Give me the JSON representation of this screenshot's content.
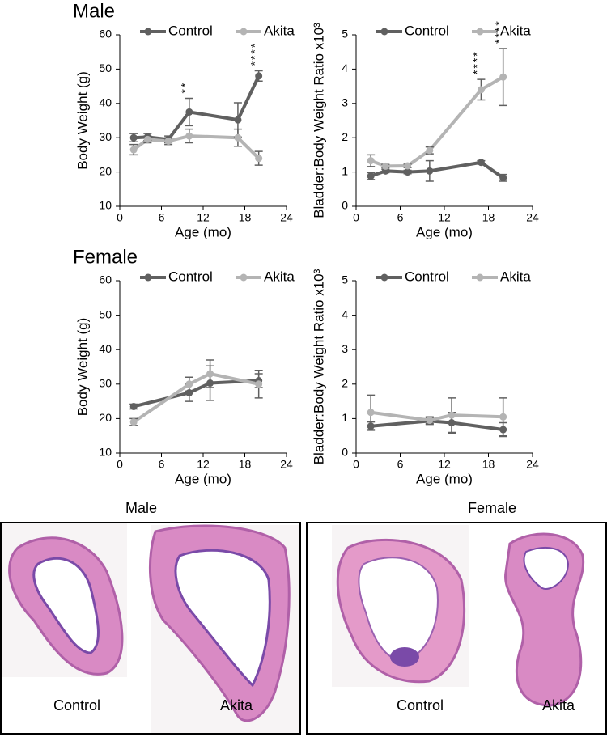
{
  "chart_data": [
    {
      "type": "line",
      "title": "Male",
      "ylabel": "Body Weight (g)",
      "xlabel": "Age (mo)",
      "x": [
        2,
        4,
        7,
        10,
        17,
        20
      ],
      "xlim": [
        0,
        24
      ],
      "xticks": [
        0,
        6,
        12,
        18,
        24
      ],
      "ylim": [
        10,
        60
      ],
      "yticks": [
        10,
        20,
        30,
        40,
        50,
        60
      ],
      "series": [
        {
          "name": "Control",
          "color": "#606060",
          "values": [
            30,
            30.2,
            29.5,
            37.5,
            35.2,
            48
          ],
          "errors": [
            1.2,
            1,
            1,
            4,
            5,
            1.5
          ],
          "significance": [
            null,
            null,
            null,
            "**",
            null,
            "****"
          ]
        },
        {
          "name": "Akita",
          "color": "#b4b4b4",
          "values": [
            26.5,
            29.5,
            29,
            30.5,
            30,
            24
          ],
          "errors": [
            1.5,
            1,
            1,
            2,
            2.5,
            2
          ]
        }
      ]
    },
    {
      "type": "line",
      "ylabel": "Bladder:Body Weight Ratio x10³",
      "xlabel": "Age (mo)",
      "x": [
        2,
        4,
        7,
        10,
        17,
        20
      ],
      "xlim": [
        0,
        24
      ],
      "xticks": [
        0,
        6,
        12,
        18,
        24
      ],
      "ylim": [
        0,
        5
      ],
      "yticks": [
        0,
        1,
        2,
        3,
        4,
        5
      ],
      "series": [
        {
          "name": "Control",
          "color": "#606060",
          "values": [
            0.88,
            1.03,
            1.0,
            1.03,
            1.28,
            0.83
          ],
          "errors": [
            0.1,
            0.05,
            0.05,
            0.3,
            0.05,
            0.1
          ]
        },
        {
          "name": "Akita",
          "color": "#b4b4b4",
          "values": [
            1.33,
            1.17,
            1.18,
            1.63,
            3.4,
            3.77
          ],
          "errors": [
            0.17,
            0.05,
            0.05,
            0.1,
            0.3,
            0.83
          ],
          "significance": [
            null,
            null,
            null,
            null,
            "****",
            "****"
          ]
        }
      ]
    },
    {
      "type": "line",
      "title": "Female",
      "ylabel": "Body Weight (g)",
      "xlabel": "Age (mo)",
      "x": [
        2,
        10,
        13,
        20
      ],
      "xlim": [
        0,
        24
      ],
      "xticks": [
        0,
        6,
        12,
        18,
        24
      ],
      "ylim": [
        10,
        60
      ],
      "yticks": [
        10,
        20,
        30,
        40,
        50,
        60
      ],
      "series": [
        {
          "name": "Control",
          "color": "#606060",
          "values": [
            23.5,
            27.5,
            30.3,
            31
          ],
          "errors": [
            0.7,
            2.5,
            5,
            2
          ]
        },
        {
          "name": "Akita",
          "color": "#b4b4b4",
          "values": [
            19,
            30,
            33,
            30
          ],
          "errors": [
            1,
            2,
            4,
            4
          ]
        }
      ]
    },
    {
      "type": "line",
      "ylabel": "Bladder:Body Weight Ratio x10³",
      "xlabel": "Age (mo)",
      "x": [
        2,
        10,
        13,
        20
      ],
      "xlim": [
        0,
        24
      ],
      "xticks": [
        0,
        6,
        12,
        18,
        24
      ],
      "ylim": [
        0,
        5
      ],
      "yticks": [
        0,
        1,
        2,
        3,
        4,
        5
      ],
      "series": [
        {
          "name": "Control",
          "color": "#606060",
          "values": [
            0.78,
            0.93,
            0.88,
            0.68
          ],
          "errors": [
            0.12,
            0.1,
            0.3,
            0.2
          ]
        },
        {
          "name": "Akita",
          "color": "#b4b4b4",
          "values": [
            1.18,
            0.95,
            1.1,
            1.05
          ],
          "errors": [
            0.5,
            0.1,
            0.5,
            0.55
          ]
        }
      ]
    }
  ],
  "histology": {
    "groups": [
      {
        "title": "Male",
        "labels": [
          "Control",
          "Akita"
        ]
      },
      {
        "title": "Female",
        "labels": [
          "Control",
          "Akita"
        ]
      }
    ]
  }
}
